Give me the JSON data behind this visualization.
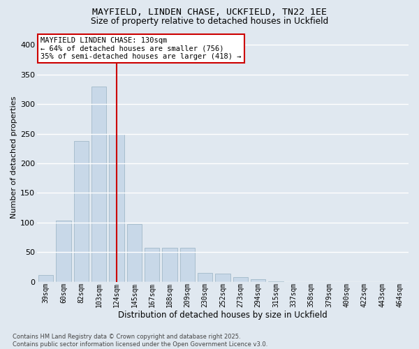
{
  "title_line1": "MAYFIELD, LINDEN CHASE, UCKFIELD, TN22 1EE",
  "title_line2": "Size of property relative to detached houses in Uckfield",
  "xlabel": "Distribution of detached houses by size in Uckfield",
  "ylabel": "Number of detached properties",
  "categories": [
    "39sqm",
    "60sqm",
    "82sqm",
    "103sqm",
    "124sqm",
    "145sqm",
    "167sqm",
    "188sqm",
    "209sqm",
    "230sqm",
    "252sqm",
    "273sqm",
    "294sqm",
    "315sqm",
    "337sqm",
    "358sqm",
    "379sqm",
    "400sqm",
    "422sqm",
    "443sqm",
    "464sqm"
  ],
  "values": [
    12,
    103,
    238,
    330,
    250,
    97,
    57,
    57,
    57,
    15,
    14,
    8,
    4,
    1,
    0,
    0,
    0,
    0,
    0,
    0,
    0
  ],
  "bar_color": "#c8d8e8",
  "bar_edge_color": "#a8bece",
  "background_color": "#e0e8f0",
  "grid_color": "#ffffff",
  "property_line_index": 4,
  "property_line_color": "#cc0000",
  "annotation_line1": "MAYFIELD LINDEN CHASE: 130sqm",
  "annotation_line2": "← 64% of detached houses are smaller (756)",
  "annotation_line3": "35% of semi-detached houses are larger (418) →",
  "annotation_box_facecolor": "#ffffff",
  "annotation_box_edgecolor": "#cc0000",
  "footer_text": "Contains HM Land Registry data © Crown copyright and database right 2025.\nContains public sector information licensed under the Open Government Licence v3.0.",
  "ylim": [
    0,
    420
  ],
  "yticks": [
    0,
    50,
    100,
    150,
    200,
    250,
    300,
    350,
    400
  ]
}
